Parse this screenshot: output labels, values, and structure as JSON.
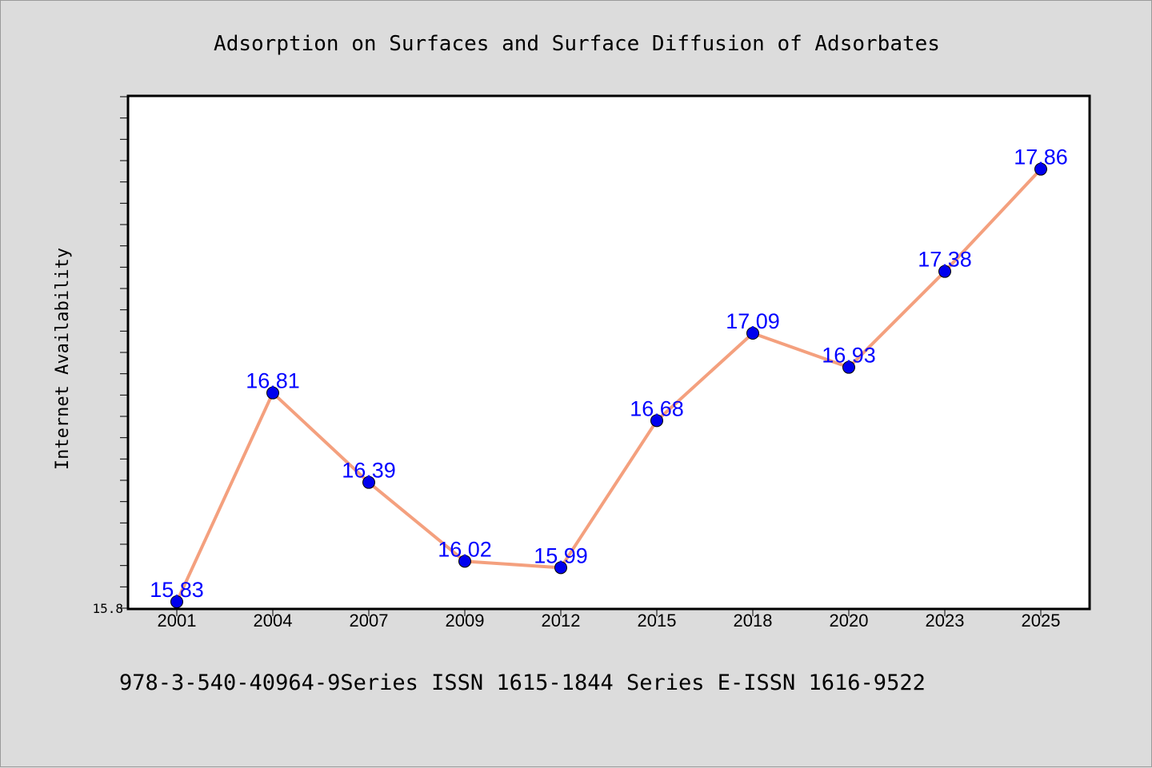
{
  "chart_data": {
    "type": "line",
    "title": "Adsorption on Surfaces and Surface Diffusion of Adsorbates",
    "xlabel": "",
    "ylabel": "Internet Availability",
    "categories": [
      "2001",
      "2004",
      "2007",
      "2009",
      "2012",
      "2015",
      "2018",
      "2020",
      "2023",
      "2025"
    ],
    "series": [
      {
        "values": [
          15.83,
          16.81,
          16.39,
          16.02,
          15.99,
          16.68,
          17.09,
          16.93,
          17.38,
          17.86
        ]
      }
    ],
    "data_labels": [
      "15.83",
      "16.81",
      "16.39",
      "16.02",
      "15.99",
      "16.68",
      "17.09",
      "16.93",
      "17.38",
      "17.86"
    ],
    "y_tick_labels": [
      "15.8"
    ],
    "ylim": [
      15.8,
      18.2
    ],
    "grid": false,
    "legend": "none",
    "colors": {
      "line": "#f4a07e",
      "marker": "#0000ee",
      "data_label": "#0000ff",
      "plot_background": "#ffffff",
      "page_background": "#dcdcdc"
    }
  },
  "footer": {
    "text": "978-3-540-40964-9Series ISSN 1615-1844 Series E-ISSN 1616-9522"
  }
}
